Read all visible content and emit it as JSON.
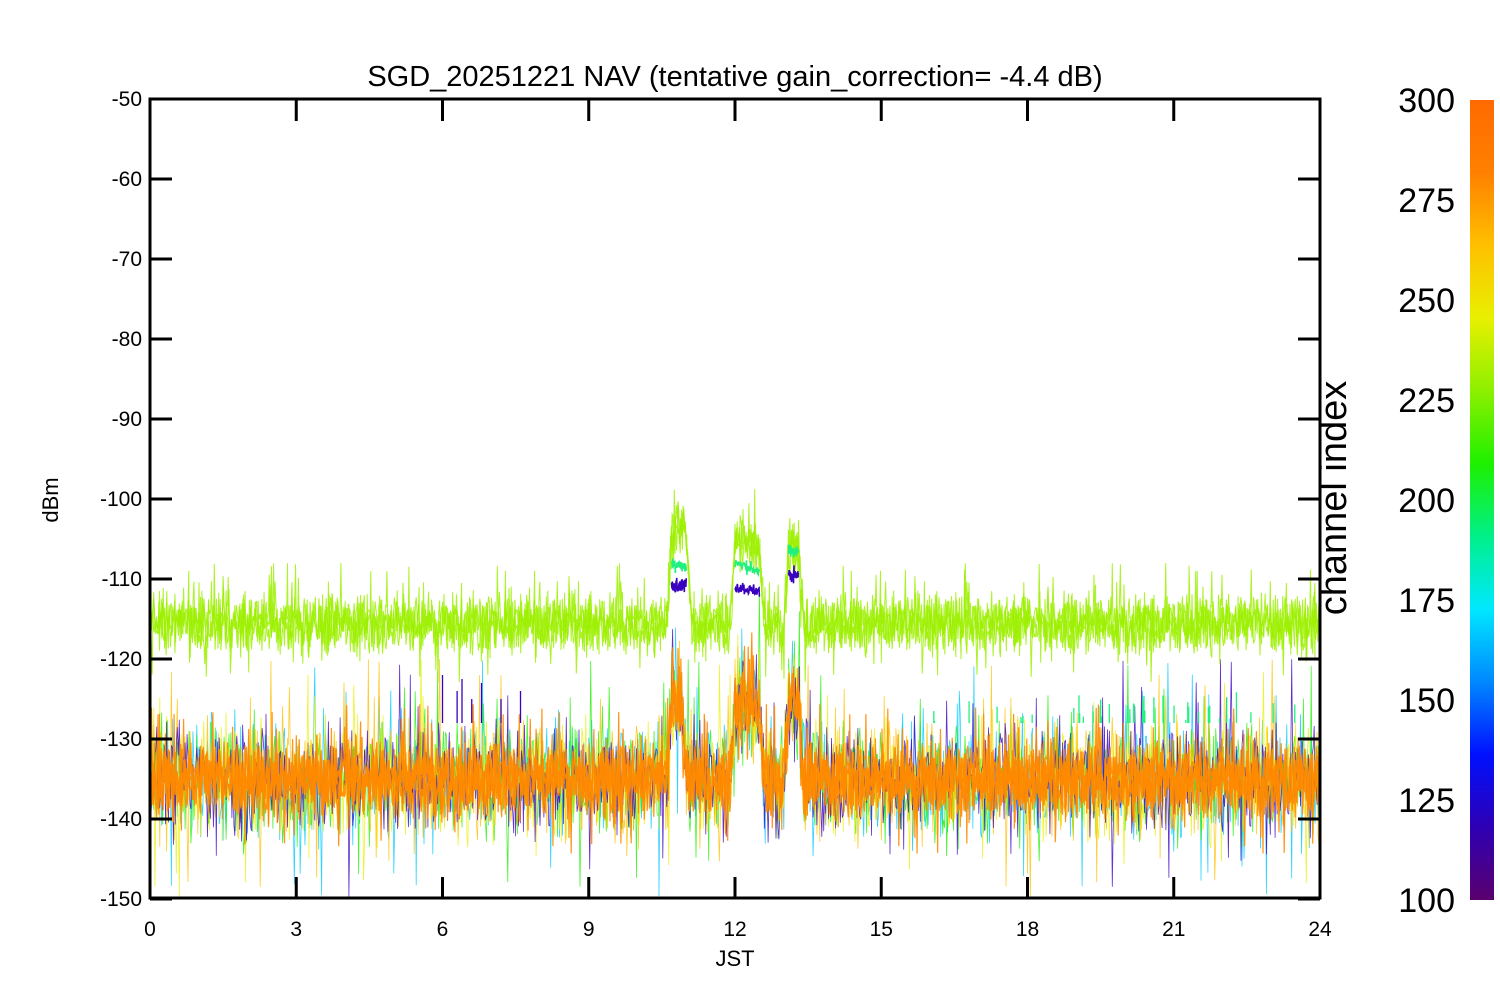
{
  "chart_data": {
    "type": "line",
    "title": "SGD_20251221 NAV (tentative gain_correction= -4.4 dB)",
    "xlabel": "JST",
    "ylabel": "dBm",
    "xlim": [
      0,
      24
    ],
    "ylim": [
      -150,
      -50
    ],
    "x_ticks": [
      "0",
      "3",
      "6",
      "9",
      "12",
      "15",
      "18",
      "21",
      "24"
    ],
    "y_ticks": [
      "-50",
      "-60",
      "-70",
      "-80",
      "-90",
      "-100",
      "-110",
      "-120",
      "-130",
      "-140",
      "-150"
    ],
    "grid": false,
    "colorbar": {
      "label": "channel index",
      "range": [
        100,
        300
      ],
      "ticks": [
        "100",
        "125",
        "150",
        "175",
        "200",
        "225",
        "250",
        "275",
        "300"
      ],
      "colormap": [
        "#5a006e",
        "#2e00b4",
        "#0010ff",
        "#0088ff",
        "#00e8ff",
        "#00f08a",
        "#1ef000",
        "#8cf000",
        "#e8f000",
        "#ffc000",
        "#ff8000",
        "#ff6a00"
      ]
    },
    "series": [
      {
        "color": "#9cf000",
        "channel_index": 255,
        "band_center": [
          [
            0,
            -115.5
          ],
          [
            6,
            -115.5
          ],
          [
            10.6,
            -115.5
          ],
          [
            10.7,
            -104
          ],
          [
            11.0,
            -104
          ],
          [
            11.1,
            -115.5
          ],
          [
            11.9,
            -115.5
          ],
          [
            12.0,
            -105
          ],
          [
            12.5,
            -106
          ],
          [
            12.6,
            -115.5
          ],
          [
            13.0,
            -115.5
          ],
          [
            13.1,
            -106
          ],
          [
            13.3,
            -106
          ],
          [
            13.4,
            -115.5
          ],
          [
            24,
            -115.5
          ]
        ],
        "band_width_db": 8
      },
      {
        "color": "#20f080",
        "channel_index": 210,
        "band_center": [
          [
            10.7,
            -108
          ],
          [
            11.0,
            -108.5
          ],
          [
            12.0,
            -108
          ],
          [
            12.5,
            -109
          ],
          [
            13.1,
            -106.5
          ],
          [
            13.3,
            -106.5
          ]
        ],
        "spikes_near": -127
      },
      {
        "color": "#3a00c0",
        "channel_index": 110,
        "band_center": [
          [
            10.7,
            -111
          ],
          [
            11.0,
            -110.5
          ],
          [
            12.0,
            -111
          ],
          [
            12.5,
            -111.5
          ],
          [
            13.1,
            -109.5
          ],
          [
            13.3,
            -109.5
          ]
        ],
        "spikes_near": -125
      },
      {
        "color": "#ff8a00",
        "channel_index": 290,
        "band_center": [
          [
            0,
            -135
          ],
          [
            10.6,
            -135
          ],
          [
            10.7,
            -125
          ],
          [
            10.9,
            -125
          ],
          [
            11.0,
            -135
          ],
          [
            11.9,
            -135
          ],
          [
            12.0,
            -126
          ],
          [
            12.5,
            -126
          ],
          [
            12.6,
            -135
          ],
          [
            13.0,
            -135
          ],
          [
            13.1,
            -125
          ],
          [
            13.3,
            -125
          ],
          [
            13.4,
            -135
          ],
          [
            24,
            -135
          ]
        ],
        "band_width_db": 10,
        "gaps_below": [
          [
            10.9,
            11.0,
            -135
          ],
          [
            12.0,
            12.5,
            -138
          ],
          [
            13.0,
            13.1,
            -137
          ]
        ]
      }
    ]
  }
}
